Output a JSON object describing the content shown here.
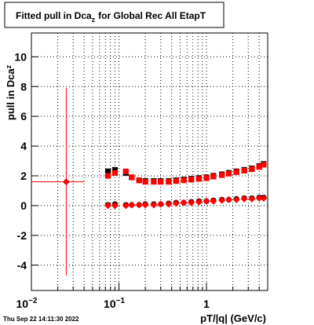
{
  "chart_data": {
    "type": "scatter",
    "title": {
      "text": "Fitted pull in Dca",
      "subscript": "z",
      "rest": "for Global Rec All EtapT"
    },
    "y_label": {
      "text": "pull in Dca",
      "subscript": "z"
    },
    "x_label": "pT/|q| (GeV/c)",
    "footer": "Thu Sep 22 14:11:30 2022",
    "xlog": true,
    "grid": true,
    "xlim": [
      0.01,
      5
    ],
    "ylim": [
      -5.7,
      11.6
    ],
    "xticks": [
      {
        "value": 0.01,
        "label": "10",
        "superscript": "−2"
      },
      {
        "value": 0.1,
        "label": "10",
        "superscript": "−1"
      },
      1
    ],
    "xminor_ticks": [
      0.02,
      0.03,
      0.04,
      0.05,
      0.06,
      0.07,
      0.08,
      0.09,
      0.2,
      0.3,
      0.4,
      0.5,
      0.6,
      0.7,
      0.8,
      0.9,
      2,
      3,
      4,
      5
    ],
    "yticks": [
      -4,
      -2,
      0,
      2,
      4,
      6,
      8,
      10
    ],
    "x": [
      0.075,
      0.09,
      0.12,
      0.14,
      0.17,
      0.2,
      0.25,
      0.3,
      0.37,
      0.45,
      0.55,
      0.67,
      0.82,
      1.0,
      1.2,
      1.5,
      1.8,
      2.2,
      2.7,
      3.3,
      4.0,
      4.5
    ],
    "series": [
      {
        "color": "#000000",
        "marker": "square",
        "values": [
          2.3,
          2.4,
          2.2,
          1.9,
          1.7,
          1.65,
          1.65,
          1.65,
          1.65,
          1.7,
          1.75,
          1.8,
          1.85,
          1.9,
          2.0,
          2.1,
          2.2,
          2.3,
          2.4,
          2.5,
          2.65,
          2.8
        ]
      },
      {
        "color": "#000000",
        "marker": "circle",
        "values": [
          0.05,
          0.1,
          0.05,
          0.05,
          0.05,
          0.1,
          0.1,
          0.1,
          0.15,
          0.2,
          0.2,
          0.25,
          0.3,
          0.3,
          0.35,
          0.4,
          0.4,
          0.45,
          0.5,
          0.5,
          0.55,
          0.55
        ]
      },
      {
        "color": "#ff0000",
        "marker": "square",
        "values": [
          2.0,
          2.2,
          2.3,
          1.9,
          1.7,
          1.6,
          1.6,
          1.6,
          1.6,
          1.65,
          1.7,
          1.75,
          1.8,
          1.85,
          1.95,
          2.05,
          2.15,
          2.25,
          2.35,
          2.45,
          2.6,
          2.75
        ]
      },
      {
        "color": "#ff0000",
        "marker": "diamond",
        "values": [
          0.0,
          0.0,
          0.0,
          0.05,
          0.05,
          0.05,
          0.05,
          0.1,
          0.1,
          0.15,
          0.2,
          0.2,
          0.25,
          0.3,
          0.3,
          0.35,
          0.4,
          0.4,
          0.45,
          0.45,
          0.5,
          0.5
        ]
      }
    ],
    "extra_point": {
      "color": "#ff0000",
      "marker": "diamond",
      "x": [
        0.025
      ],
      "values": [
        1.6
      ],
      "xerr": [
        0.015
      ],
      "yerr": [
        6.3
      ]
    }
  }
}
